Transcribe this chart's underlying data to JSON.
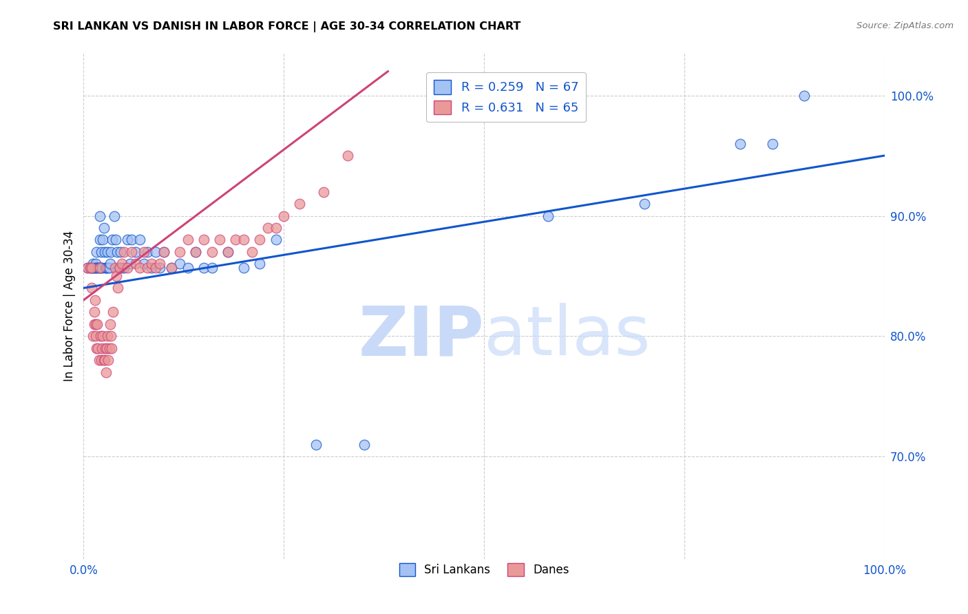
{
  "title": "SRI LANKAN VS DANISH IN LABOR FORCE | AGE 30-34 CORRELATION CHART",
  "source": "Source: ZipAtlas.com",
  "ylabel": "In Labor Force | Age 30-34",
  "xlim": [
    0.0,
    1.0
  ],
  "ylim": [
    0.615,
    1.035
  ],
  "sri_lankans_color": "#a4c2f4",
  "danes_color": "#ea9999",
  "sri_lankans_line_color": "#1155cc",
  "danes_line_color": "#cc4477",
  "R_sri": 0.259,
  "N_sri": 67,
  "R_danes": 0.631,
  "N_danes": 65,
  "watermark_zip": "ZIP",
  "watermark_atlas": "atlas",
  "watermark_color": "#c9daf8",
  "sri_x": [
    0.005,
    0.008,
    0.01,
    0.01,
    0.012,
    0.012,
    0.013,
    0.013,
    0.015,
    0.015,
    0.016,
    0.017,
    0.018,
    0.019,
    0.02,
    0.02,
    0.021,
    0.022,
    0.022,
    0.023,
    0.024,
    0.025,
    0.026,
    0.027,
    0.028,
    0.029,
    0.03,
    0.031,
    0.032,
    0.033,
    0.034,
    0.036,
    0.038,
    0.04,
    0.042,
    0.044,
    0.046,
    0.048,
    0.05,
    0.055,
    0.058,
    0.06,
    0.065,
    0.07,
    0.075,
    0.08,
    0.085,
    0.09,
    0.095,
    0.1,
    0.11,
    0.12,
    0.13,
    0.14,
    0.15,
    0.16,
    0.18,
    0.2,
    0.22,
    0.24,
    0.29,
    0.35,
    0.58,
    0.7,
    0.82,
    0.86,
    0.9
  ],
  "sri_y": [
    0.857,
    0.857,
    0.857,
    0.857,
    0.86,
    0.857,
    0.857,
    0.857,
    0.86,
    0.857,
    0.87,
    0.857,
    0.857,
    0.857,
    0.9,
    0.88,
    0.857,
    0.87,
    0.857,
    0.857,
    0.88,
    0.89,
    0.87,
    0.857,
    0.857,
    0.857,
    0.87,
    0.857,
    0.857,
    0.86,
    0.87,
    0.88,
    0.9,
    0.88,
    0.87,
    0.857,
    0.87,
    0.857,
    0.857,
    0.88,
    0.86,
    0.88,
    0.87,
    0.88,
    0.86,
    0.87,
    0.857,
    0.87,
    0.857,
    0.87,
    0.857,
    0.86,
    0.857,
    0.87,
    0.857,
    0.857,
    0.87,
    0.857,
    0.86,
    0.88,
    0.71,
    0.71,
    0.9,
    0.91,
    0.96,
    0.96,
    1.0
  ],
  "danes_x": [
    0.005,
    0.008,
    0.01,
    0.01,
    0.012,
    0.013,
    0.013,
    0.014,
    0.015,
    0.015,
    0.016,
    0.017,
    0.018,
    0.019,
    0.02,
    0.021,
    0.022,
    0.023,
    0.024,
    0.025,
    0.026,
    0.027,
    0.028,
    0.029,
    0.03,
    0.031,
    0.032,
    0.033,
    0.034,
    0.035,
    0.037,
    0.039,
    0.041,
    0.043,
    0.045,
    0.048,
    0.05,
    0.055,
    0.06,
    0.065,
    0.07,
    0.075,
    0.08,
    0.085,
    0.09,
    0.095,
    0.1,
    0.11,
    0.12,
    0.13,
    0.14,
    0.15,
    0.16,
    0.17,
    0.18,
    0.19,
    0.2,
    0.21,
    0.22,
    0.23,
    0.24,
    0.25,
    0.27,
    0.3,
    0.33
  ],
  "danes_y": [
    0.857,
    0.857,
    0.84,
    0.857,
    0.8,
    0.81,
    0.82,
    0.83,
    0.81,
    0.8,
    0.79,
    0.81,
    0.79,
    0.78,
    0.857,
    0.8,
    0.78,
    0.79,
    0.8,
    0.78,
    0.78,
    0.79,
    0.77,
    0.79,
    0.8,
    0.78,
    0.79,
    0.81,
    0.8,
    0.79,
    0.82,
    0.857,
    0.85,
    0.84,
    0.857,
    0.86,
    0.87,
    0.857,
    0.87,
    0.86,
    0.857,
    0.87,
    0.857,
    0.86,
    0.857,
    0.86,
    0.87,
    0.857,
    0.87,
    0.88,
    0.87,
    0.88,
    0.87,
    0.88,
    0.87,
    0.88,
    0.88,
    0.87,
    0.88,
    0.89,
    0.89,
    0.9,
    0.91,
    0.92,
    0.95
  ]
}
